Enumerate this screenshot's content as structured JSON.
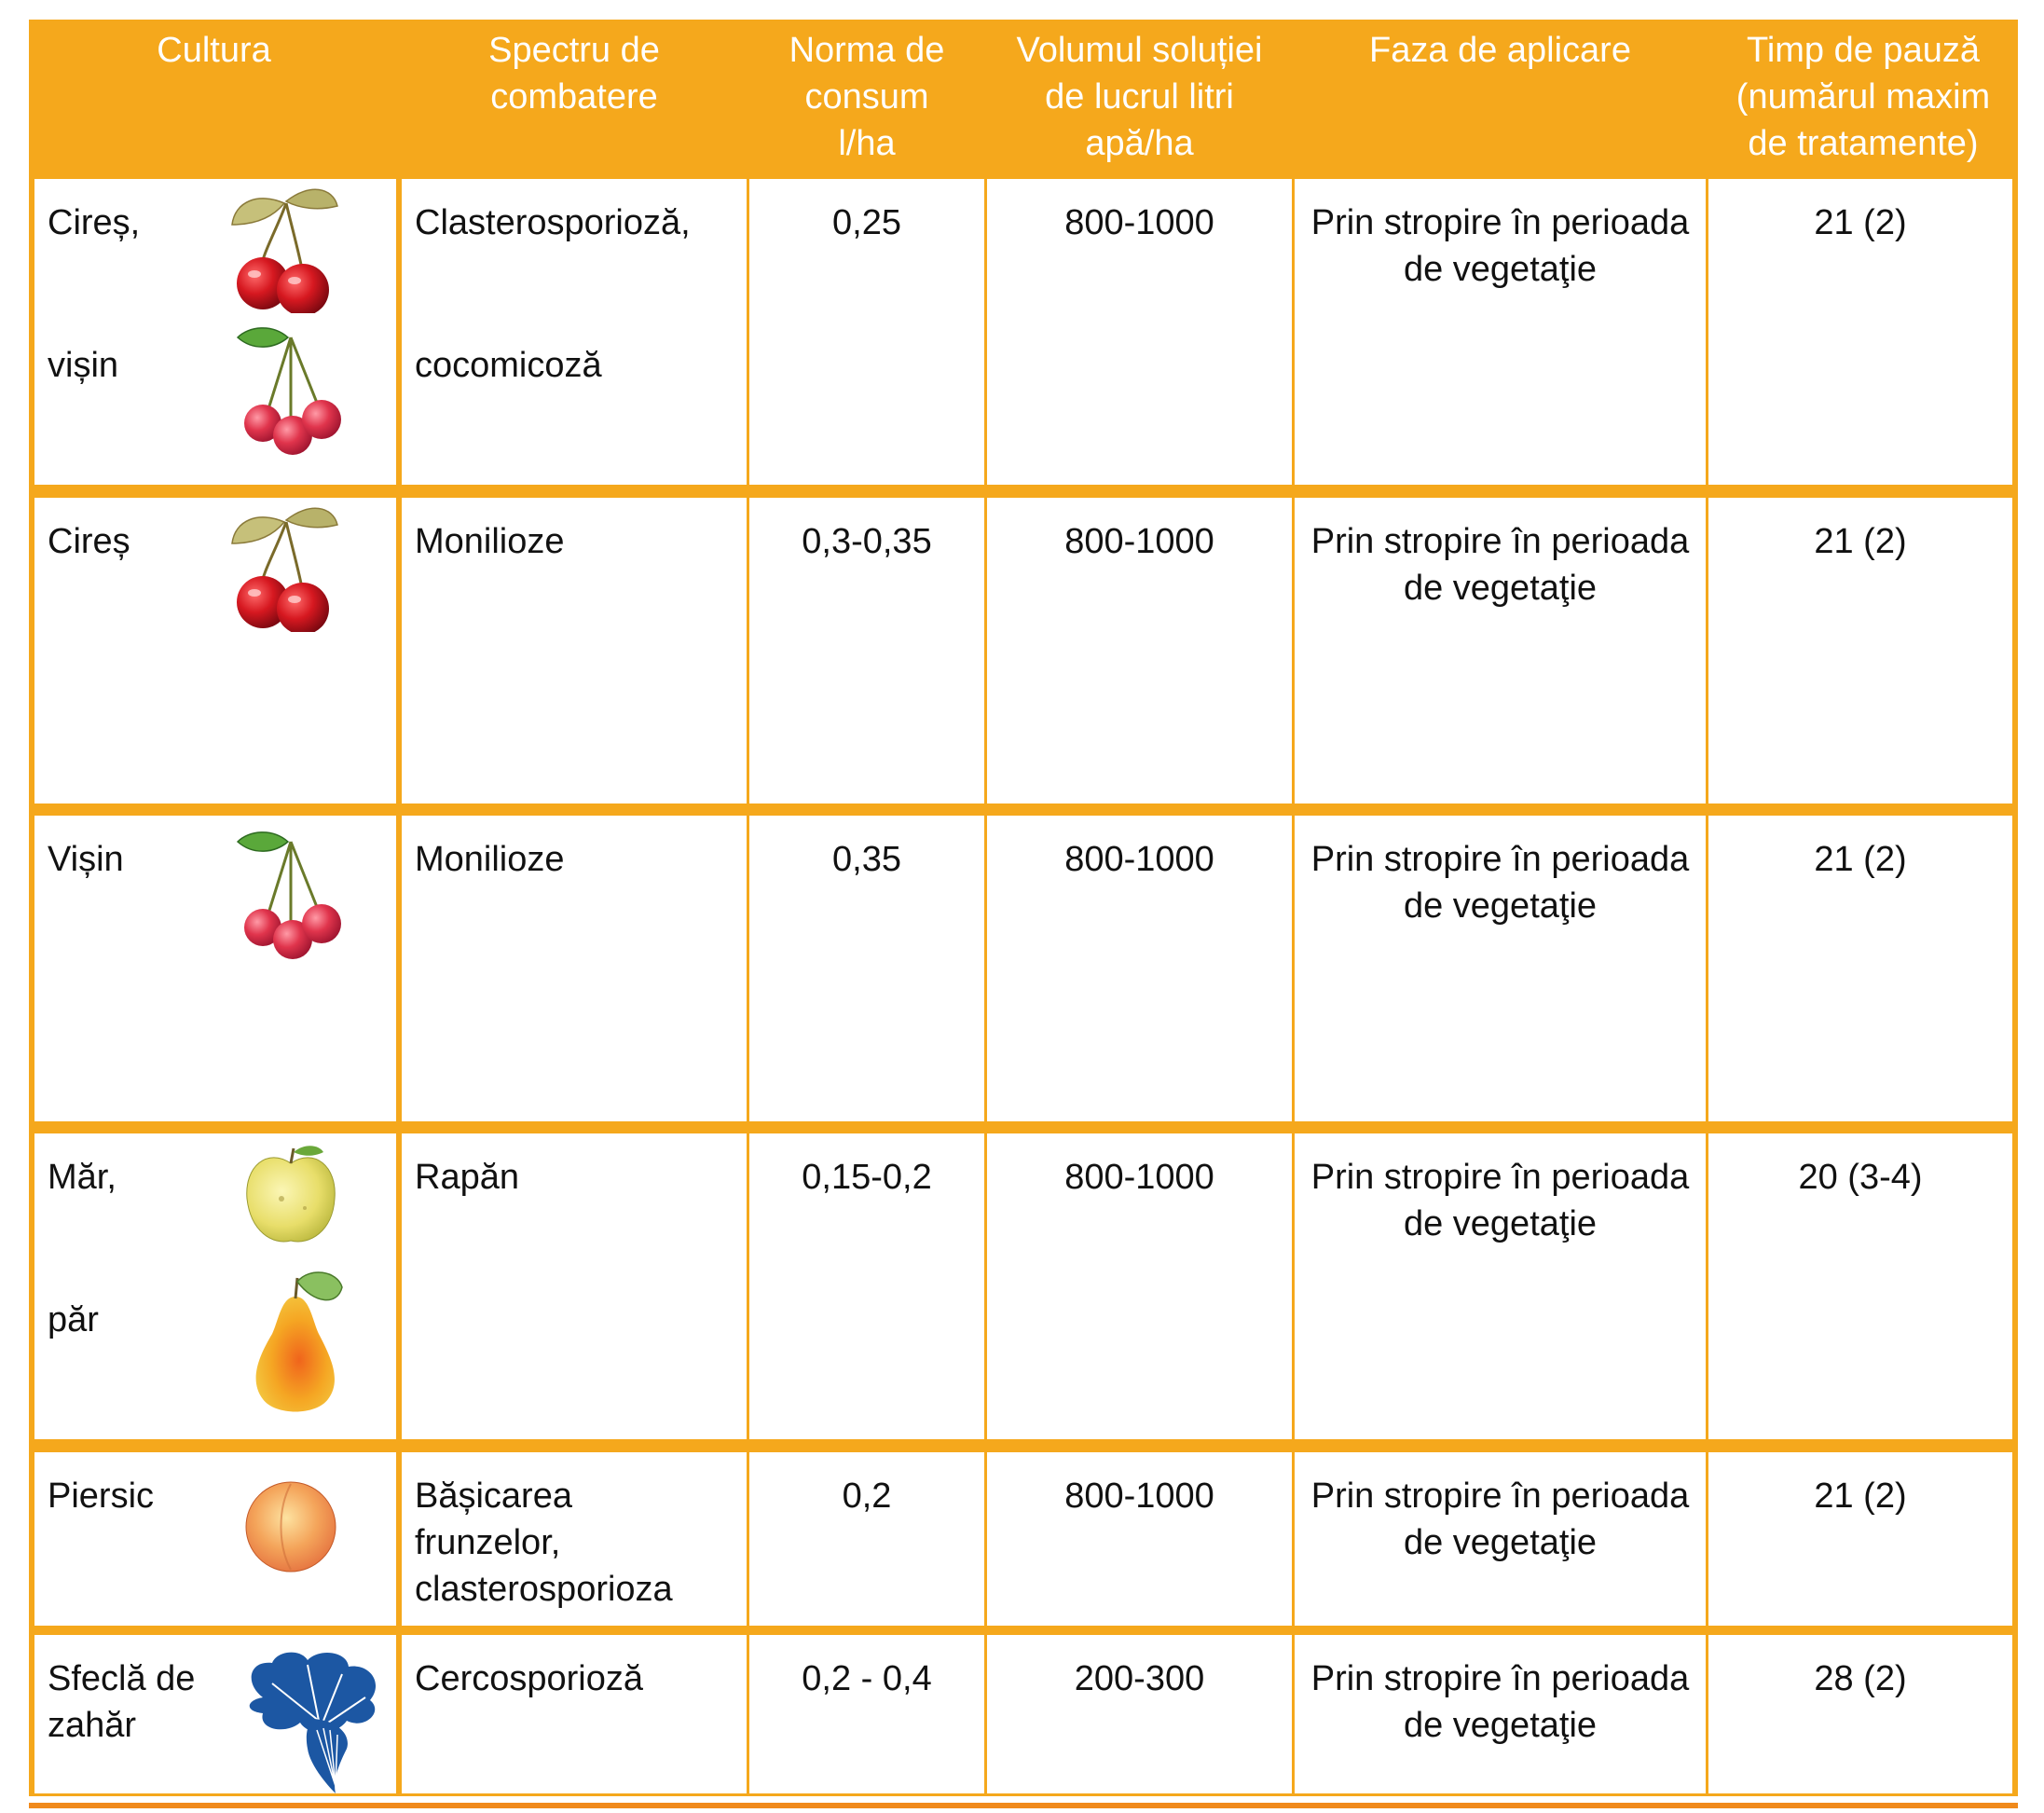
{
  "headers": {
    "cultura": "Cultura",
    "spectru": "Spectru de combatere",
    "norma": "Norma de consum l/ha",
    "volum": "Volumul soluției de lucrul litri apă/ha",
    "faza": "Faza de aplicare",
    "timp": "Timp de pauză (numărul maxim de tratamente)"
  },
  "rows": [
    {
      "cultura_1": "Cireș,",
      "cultura_2": "vișin",
      "spectru_1": "Clasterosporioză,",
      "spectru_2": "cocomicoză",
      "norma": "0,25",
      "volum": "800-1000",
      "faza": "Prin stropire în perioada de vegetaţie",
      "timp": "21 (2)",
      "icons": [
        "cherry-icon",
        "sour-cherry-icon"
      ]
    },
    {
      "cultura_1": "Cireș",
      "spectru_1": "Monilioze",
      "norma": "0,3-0,35",
      "volum": "800-1000",
      "faza": "Prin stropire în perioada de vegetaţie",
      "timp": "21 (2)",
      "icons": [
        "cherry-icon"
      ]
    },
    {
      "cultura_1": "Vișin",
      "spectru_1": "Monilioze",
      "norma": "0,35",
      "volum": "800-1000",
      "faza": "Prin stropire în perioada de vegetaţie",
      "timp": "21 (2)",
      "icons": [
        "sour-cherry-icon"
      ]
    },
    {
      "cultura_1": "Măr,",
      "cultura_2": "păr",
      "spectru_1": "Rapăn",
      "norma": "0,15-0,2",
      "volum": "800-1000",
      "faza": "Prin stropire în perioada de vegetaţie",
      "timp": "20 (3-4)",
      "icons": [
        "apple-icon",
        "pear-icon"
      ]
    },
    {
      "cultura_1": "Piersic",
      "spectru_1": "Bășicarea frunzelor, clasterosporioza",
      "norma": "0,2",
      "volum": "800-1000",
      "faza": "Prin stropire în perioada de vegetaţie",
      "timp": "21 (2)",
      "icons": [
        "peach-icon"
      ]
    },
    {
      "cultura_1": "Sfeclă de zahăr",
      "spectru_1": "Cercosporioză",
      "norma": "0,2 - 0,4",
      "volum": "200-300",
      "faza": "Prin stropire în perioada de vegetaţie",
      "timp": "28 (2)",
      "icons": [
        "sugar-beet-icon"
      ]
    }
  ],
  "colors": {
    "header_bg": "#f5a81c",
    "grid": "#f5a81c",
    "beet": "#1c57a3"
  }
}
